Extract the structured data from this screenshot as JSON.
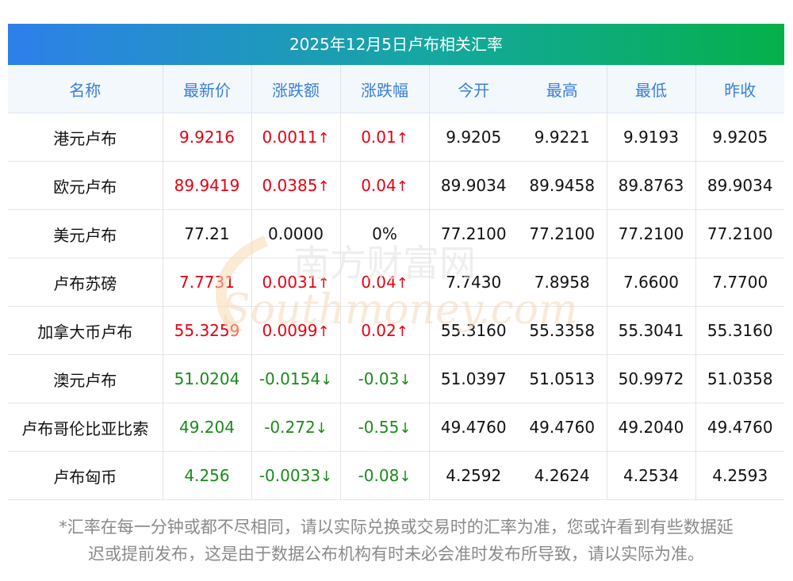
{
  "title": "2025年12月5日卢布相关汇率",
  "headers": [
    "名称",
    "最新价",
    "涨跌额",
    "涨跌幅",
    "今开",
    "最高",
    "最低",
    "昨收"
  ],
  "rows": [
    {
      "name": "港元卢布",
      "latest": "9.9216",
      "change": "0.0011",
      "pct": "0.01",
      "dir": "up",
      "open": "9.9205",
      "high": "9.9221",
      "low": "9.9193",
      "prev": "9.9205"
    },
    {
      "name": "欧元卢布",
      "latest": "89.9419",
      "change": "0.0385",
      "pct": "0.04",
      "dir": "up",
      "open": "89.9034",
      "high": "89.9458",
      "low": "89.8763",
      "prev": "89.9034"
    },
    {
      "name": "美元卢布",
      "latest": "77.21",
      "change": "0.0000",
      "pct": "0%",
      "dir": "flat",
      "open": "77.2100",
      "high": "77.2100",
      "low": "77.2100",
      "prev": "77.2100"
    },
    {
      "name": "卢布苏磅",
      "latest": "7.7731",
      "change": "0.0031",
      "pct": "0.04",
      "dir": "up",
      "open": "7.7430",
      "high": "7.8958",
      "low": "7.6600",
      "prev": "7.7700"
    },
    {
      "name": "加拿大币卢布",
      "latest": "55.3259",
      "change": "0.0099",
      "pct": "0.02",
      "dir": "up",
      "open": "55.3160",
      "high": "55.3358",
      "low": "55.3041",
      "prev": "55.3160"
    },
    {
      "name": "澳元卢布",
      "latest": "51.0204",
      "change": "-0.0154",
      "pct": "-0.03",
      "dir": "down",
      "open": "51.0397",
      "high": "51.0513",
      "low": "50.9972",
      "prev": "51.0358"
    },
    {
      "name": "卢布哥伦比亚比索",
      "latest": "49.204",
      "change": "-0.272",
      "pct": "-0.55",
      "dir": "down",
      "open": "49.4760",
      "high": "49.4760",
      "low": "49.2040",
      "prev": "49.4760"
    },
    {
      "name": "卢布匈币",
      "latest": "4.256",
      "change": "-0.0033",
      "pct": "-0.08",
      "dir": "down",
      "open": "4.2592",
      "high": "4.2624",
      "low": "4.2534",
      "prev": "4.2593"
    }
  ],
  "arrows": {
    "up": "↑",
    "down": "↓",
    "flat": ""
  },
  "footnote_line1": "*汇率在每一分钟或都不尽相同，请以实际兑换或交易时的汇率为准，您或许看到有些数据延",
  "footnote_line2": "迟或提前发布，这是由于数据公布机构有时未必会准时发布所导致，请以实际为准。",
  "watermark": {
    "cn": "南方财富网",
    "en": "Southmoney.com"
  },
  "colors": {
    "up": "#e60012",
    "down": "#1a8a1a",
    "header_text": "#3a7fd6",
    "title_grad_start": "#2e7fea",
    "title_grad_end": "#05b04a"
  }
}
